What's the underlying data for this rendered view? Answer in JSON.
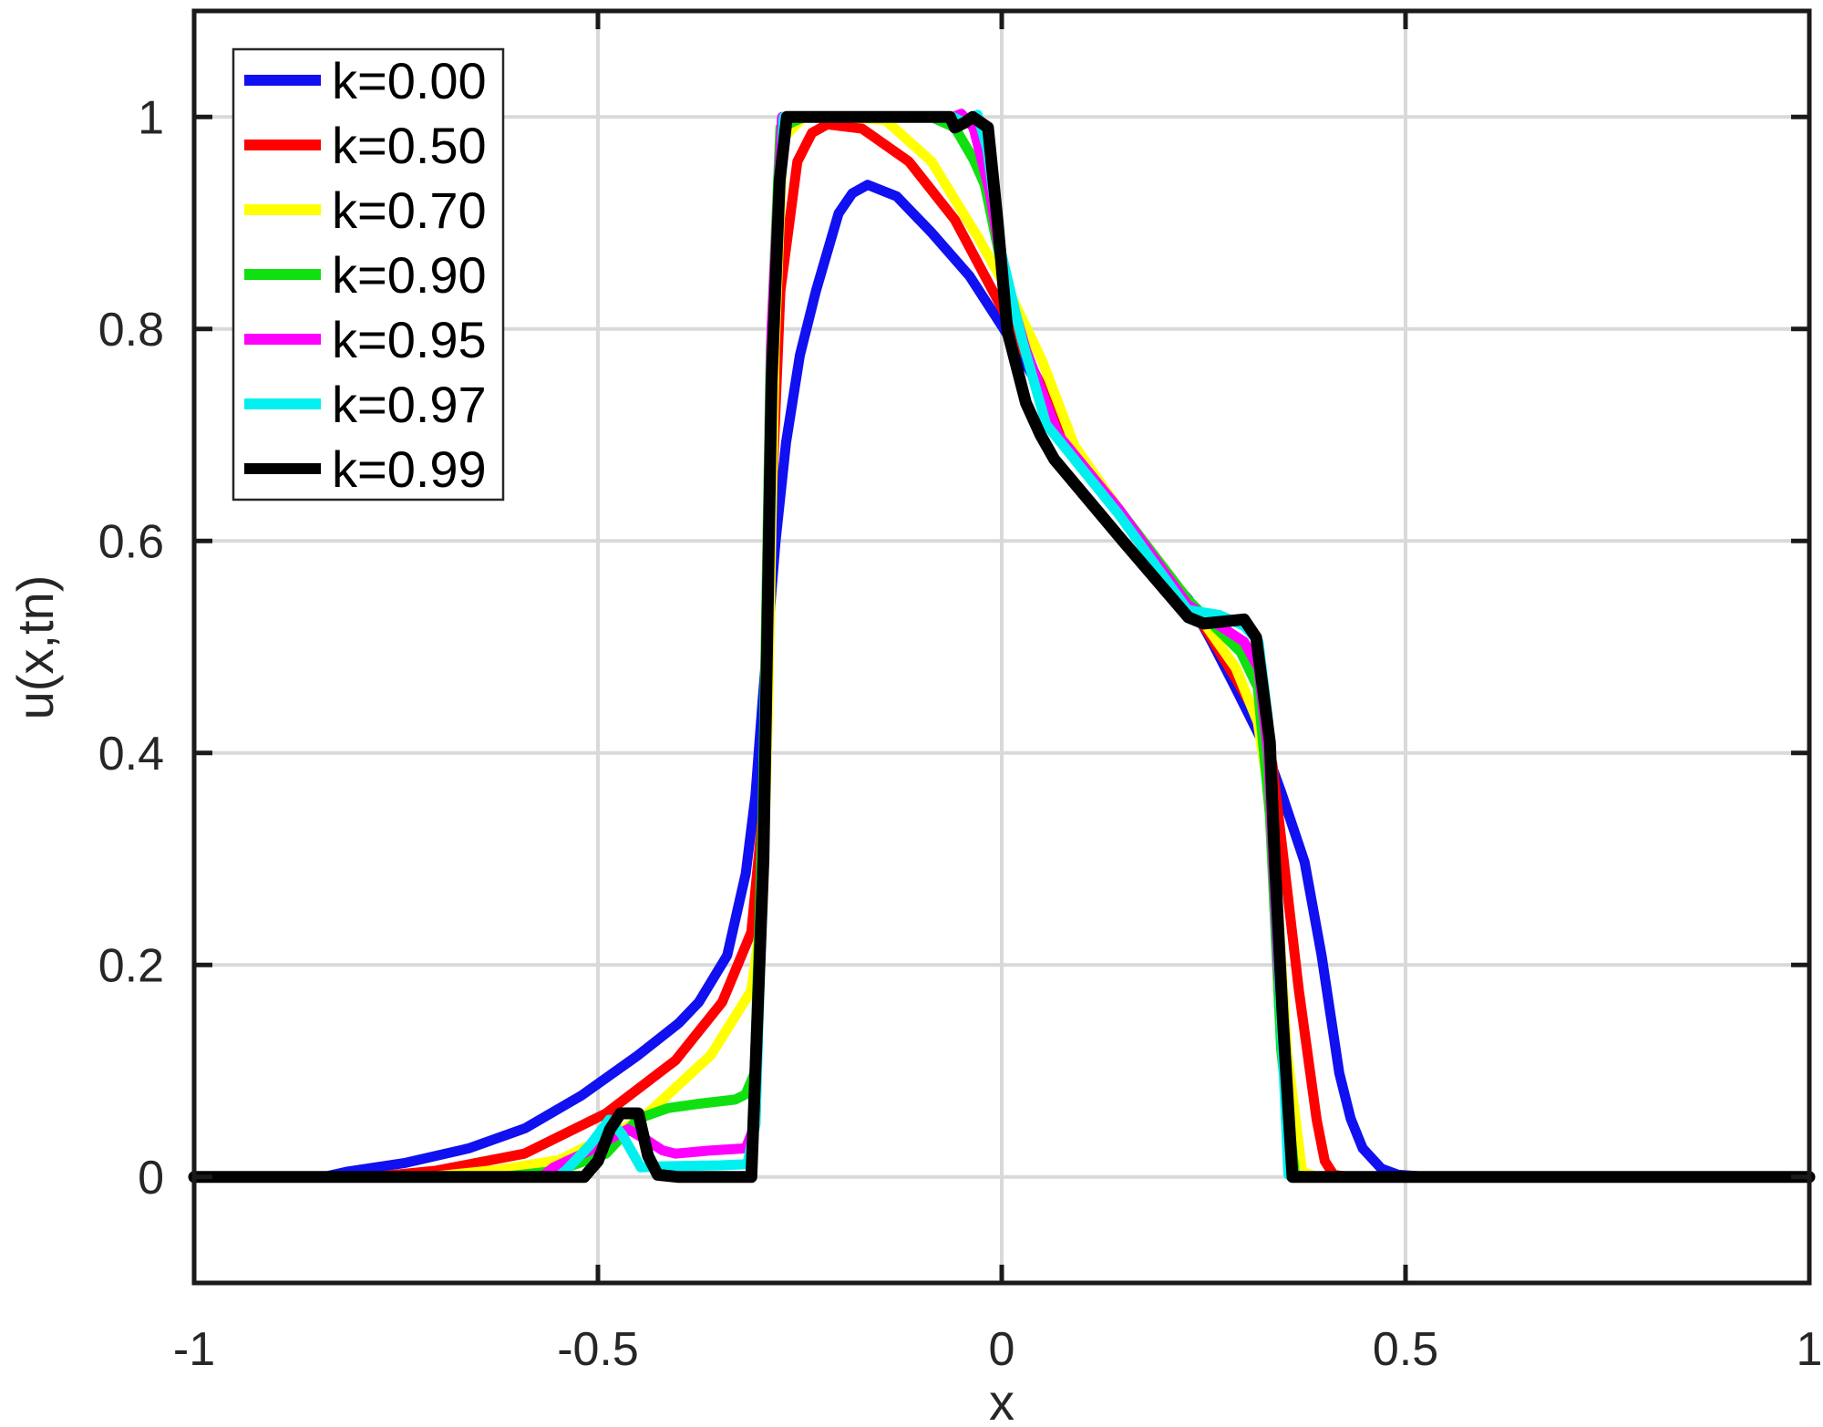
{
  "chart_data": {
    "type": "line",
    "title": "",
    "xlabel": "x",
    "ylabel": "u(x,tn)",
    "xlim": [
      -1,
      1
    ],
    "ylim": [
      -0.1,
      1.1
    ],
    "grid": true,
    "legend_position": "upper-left",
    "xticks": [
      -1,
      -0.5,
      0,
      0.5,
      1
    ],
    "xtick_labels": [
      "-1",
      "-0.5",
      "0",
      "0.5",
      "1"
    ],
    "yticks": [
      0,
      0.2,
      0.4,
      0.6,
      0.8,
      1
    ],
    "ytick_labels": [
      "0",
      "0.2",
      "0.4",
      "0.6",
      "0.8",
      "1"
    ],
    "series": [
      {
        "name": "k=0.00",
        "color": "#1010f0",
        "points": [
          [
            -1,
            0
          ],
          [
            -0.84,
            0
          ],
          [
            -0.81,
            0.005
          ],
          [
            -0.74,
            0.013
          ],
          [
            -0.66,
            0.027
          ],
          [
            -0.59,
            0.046
          ],
          [
            -0.52,
            0.077
          ],
          [
            -0.45,
            0.115
          ],
          [
            -0.4,
            0.145
          ],
          [
            -0.375,
            0.165
          ],
          [
            -0.34,
            0.209
          ],
          [
            -0.317,
            0.286
          ],
          [
            -0.305,
            0.36
          ],
          [
            -0.296,
            0.45
          ],
          [
            -0.28,
            0.6
          ],
          [
            -0.267,
            0.693
          ],
          [
            -0.25,
            0.775
          ],
          [
            -0.23,
            0.836
          ],
          [
            -0.202,
            0.909
          ],
          [
            -0.185,
            0.928
          ],
          [
            -0.166,
            0.936
          ],
          [
            -0.13,
            0.925
          ],
          [
            -0.087,
            0.891
          ],
          [
            -0.04,
            0.85
          ],
          [
            0.0,
            0.803
          ],
          [
            0.029,
            0.768
          ],
          [
            0.08,
            0.7
          ],
          [
            0.145,
            0.627
          ],
          [
            0.2,
            0.572
          ],
          [
            0.231,
            0.545
          ],
          [
            0.26,
            0.505
          ],
          [
            0.289,
            0.462
          ],
          [
            0.325,
            0.407
          ],
          [
            0.346,
            0.363
          ],
          [
            0.375,
            0.297
          ],
          [
            0.396,
            0.209
          ],
          [
            0.418,
            0.098
          ],
          [
            0.432,
            0.055
          ],
          [
            0.447,
            0.027
          ],
          [
            0.47,
            0.008
          ],
          [
            0.491,
            0.002
          ],
          [
            0.53,
            0
          ],
          [
            1,
            0
          ]
        ]
      },
      {
        "name": "k=0.50",
        "color": "#ff0000",
        "points": [
          [
            -1,
            0
          ],
          [
            -0.78,
            0
          ],
          [
            -0.7,
            0.006
          ],
          [
            -0.591,
            0.022
          ],
          [
            -0.49,
            0.06
          ],
          [
            -0.404,
            0.11
          ],
          [
            -0.346,
            0.165
          ],
          [
            -0.31,
            0.231
          ],
          [
            -0.296,
            0.341
          ],
          [
            -0.286,
            0.616
          ],
          [
            -0.274,
            0.836
          ],
          [
            -0.253,
            0.958
          ],
          [
            -0.235,
            0.985
          ],
          [
            -0.216,
            0.993
          ],
          [
            -0.173,
            0.989
          ],
          [
            -0.115,
            0.958
          ],
          [
            -0.058,
            0.903
          ],
          [
            0.0,
            0.82
          ],
          [
            0.03,
            0.775
          ],
          [
            0.08,
            0.7
          ],
          [
            0.145,
            0.63
          ],
          [
            0.23,
            0.545
          ],
          [
            0.29,
            0.47
          ],
          [
            0.32,
            0.43
          ],
          [
            0.335,
            0.39
          ],
          [
            0.346,
            0.319
          ],
          [
            0.368,
            0.176
          ],
          [
            0.39,
            0.054
          ],
          [
            0.4,
            0.015
          ],
          [
            0.411,
            0.002
          ],
          [
            0.43,
            0
          ],
          [
            1,
            0
          ]
        ]
      },
      {
        "name": "k=0.70",
        "color": "#ffff00",
        "points": [
          [
            -1,
            0
          ],
          [
            -0.71,
            0
          ],
          [
            -0.62,
            0.007
          ],
          [
            -0.548,
            0.016
          ],
          [
            -0.447,
            0.054
          ],
          [
            -0.36,
            0.115
          ],
          [
            -0.31,
            0.176
          ],
          [
            -0.296,
            0.253
          ],
          [
            -0.289,
            0.45
          ],
          [
            -0.281,
            0.782
          ],
          [
            -0.271,
            0.98
          ],
          [
            -0.245,
            1.0
          ],
          [
            -0.2,
            1.0
          ],
          [
            -0.144,
            0.997
          ],
          [
            -0.087,
            0.958
          ],
          [
            -0.029,
            0.886
          ],
          [
            0.015,
            0.826
          ],
          [
            0.05,
            0.77
          ],
          [
            0.09,
            0.69
          ],
          [
            0.145,
            0.63
          ],
          [
            0.23,
            0.545
          ],
          [
            0.29,
            0.48
          ],
          [
            0.317,
            0.429
          ],
          [
            0.335,
            0.341
          ],
          [
            0.353,
            0.12
          ],
          [
            0.372,
            0.005
          ],
          [
            0.39,
            0
          ],
          [
            1,
            0
          ]
        ]
      },
      {
        "name": "k=0.90",
        "color": "#10e010",
        "points": [
          [
            -1,
            0
          ],
          [
            -0.62,
            0
          ],
          [
            -0.55,
            0.006
          ],
          [
            -0.49,
            0.022
          ],
          [
            -0.45,
            0.055
          ],
          [
            -0.413,
            0.065
          ],
          [
            -0.375,
            0.069
          ],
          [
            -0.33,
            0.073
          ],
          [
            -0.317,
            0.078
          ],
          [
            -0.306,
            0.098
          ],
          [
            -0.296,
            0.341
          ],
          [
            -0.286,
            0.782
          ],
          [
            -0.274,
            0.99
          ],
          [
            -0.245,
            1.0
          ],
          [
            -0.087,
            1.0
          ],
          [
            -0.058,
            0.99
          ],
          [
            -0.035,
            0.96
          ],
          [
            -0.021,
            0.936
          ],
          [
            0.0,
            0.859
          ],
          [
            0.029,
            0.782
          ],
          [
            0.07,
            0.7
          ],
          [
            0.145,
            0.63
          ],
          [
            0.23,
            0.545
          ],
          [
            0.26,
            0.522
          ],
          [
            0.296,
            0.495
          ],
          [
            0.317,
            0.462
          ],
          [
            0.332,
            0.341
          ],
          [
            0.346,
            0.12
          ],
          [
            0.363,
            0.002
          ],
          [
            0.38,
            0
          ],
          [
            1,
            0
          ]
        ]
      },
      {
        "name": "k=0.95",
        "color": "#ff00ff",
        "points": [
          [
            -1,
            0
          ],
          [
            -0.57,
            0
          ],
          [
            -0.555,
            0.009
          ],
          [
            -0.51,
            0.025
          ],
          [
            -0.476,
            0.04
          ],
          [
            -0.463,
            0.045
          ],
          [
            -0.44,
            0.035
          ],
          [
            -0.42,
            0.025
          ],
          [
            -0.404,
            0.022
          ],
          [
            -0.36,
            0.025
          ],
          [
            -0.317,
            0.027
          ],
          [
            -0.305,
            0.05
          ],
          [
            -0.296,
            0.3
          ],
          [
            -0.285,
            0.8
          ],
          [
            -0.272,
            1.0
          ],
          [
            -0.245,
            1.0
          ],
          [
            -0.06,
            1.0
          ],
          [
            -0.05,
            1.003
          ],
          [
            -0.035,
            0.99
          ],
          [
            -0.015,
            0.93
          ],
          [
            0.0,
            0.86
          ],
          [
            0.03,
            0.78
          ],
          [
            0.07,
            0.7
          ],
          [
            0.145,
            0.63
          ],
          [
            0.23,
            0.54
          ],
          [
            0.27,
            0.52
          ],
          [
            0.3,
            0.505
          ],
          [
            0.318,
            0.48
          ],
          [
            0.33,
            0.4
          ],
          [
            0.342,
            0.2
          ],
          [
            0.36,
            0.002
          ],
          [
            0.375,
            0
          ],
          [
            1,
            0
          ]
        ]
      },
      {
        "name": "k=0.97",
        "color": "#00f0f0",
        "points": [
          [
            -1,
            0
          ],
          [
            -0.55,
            0
          ],
          [
            -0.54,
            0.006
          ],
          [
            -0.51,
            0.03
          ],
          [
            -0.486,
            0.054
          ],
          [
            -0.47,
            0.04
          ],
          [
            -0.447,
            0.009
          ],
          [
            -0.42,
            0.01
          ],
          [
            -0.349,
            0.011
          ],
          [
            -0.315,
            0.012
          ],
          [
            -0.305,
            0.05
          ],
          [
            -0.295,
            0.3
          ],
          [
            -0.283,
            0.8
          ],
          [
            -0.27,
            1.0
          ],
          [
            -0.245,
            1.0
          ],
          [
            -0.06,
            1.0
          ],
          [
            -0.048,
            0.995
          ],
          [
            -0.03,
            1.002
          ],
          [
            -0.018,
            0.97
          ],
          [
            0.0,
            0.87
          ],
          [
            0.025,
            0.79
          ],
          [
            0.055,
            0.71
          ],
          [
            0.145,
            0.625
          ],
          [
            0.23,
            0.535
          ],
          [
            0.27,
            0.53
          ],
          [
            0.3,
            0.52
          ],
          [
            0.318,
            0.505
          ],
          [
            0.33,
            0.43
          ],
          [
            0.34,
            0.25
          ],
          [
            0.355,
            0.002
          ],
          [
            0.37,
            0
          ],
          [
            1,
            0
          ]
        ]
      },
      {
        "name": "k=0.99",
        "color": "#000000",
        "points": [
          [
            -1,
            0
          ],
          [
            -0.517,
            0
          ],
          [
            -0.5,
            0.015
          ],
          [
            -0.485,
            0.045
          ],
          [
            -0.472,
            0.06
          ],
          [
            -0.45,
            0.06
          ],
          [
            -0.438,
            0.02
          ],
          [
            -0.426,
            0.002
          ],
          [
            -0.4,
            0
          ],
          [
            -0.31,
            0
          ],
          [
            -0.295,
            0.3
          ],
          [
            -0.285,
            0.75
          ],
          [
            -0.275,
            0.94
          ],
          [
            -0.266,
            1.0
          ],
          [
            -0.064,
            1.0
          ],
          [
            -0.058,
            0.99
          ],
          [
            -0.045,
            0.995
          ],
          [
            -0.036,
            1.0
          ],
          [
            -0.017,
            0.99
          ],
          [
            -0.005,
            0.9
          ],
          [
            0.007,
            0.798
          ],
          [
            0.03,
            0.73
          ],
          [
            0.048,
            0.7
          ],
          [
            0.065,
            0.677
          ],
          [
            0.15,
            0.6
          ],
          [
            0.231,
            0.528
          ],
          [
            0.25,
            0.522
          ],
          [
            0.3,
            0.526
          ],
          [
            0.315,
            0.509
          ],
          [
            0.332,
            0.41
          ],
          [
            0.338,
            0.3
          ],
          [
            0.348,
            0.15
          ],
          [
            0.36,
            0.0
          ],
          [
            0.37,
            0
          ],
          [
            1,
            0
          ]
        ]
      }
    ]
  },
  "legend": {
    "items": [
      {
        "label": "k=0.00",
        "color": "#1010f0"
      },
      {
        "label": "k=0.50",
        "color": "#ff0000"
      },
      {
        "label": "k=0.70",
        "color": "#ffff00"
      },
      {
        "label": "k=0.90",
        "color": "#10e010"
      },
      {
        "label": "k=0.95",
        "color": "#ff00ff"
      },
      {
        "label": "k=0.97",
        "color": "#00f0f0"
      },
      {
        "label": "k=0.99",
        "color": "#000000"
      }
    ]
  },
  "axes": {
    "xlabel": "x",
    "ylabel": "u(x,tn)"
  },
  "colors": {
    "grid": "#d9d9d9",
    "axis": "#1a1a1a",
    "text": "#262626",
    "background": "#ffffff"
  }
}
